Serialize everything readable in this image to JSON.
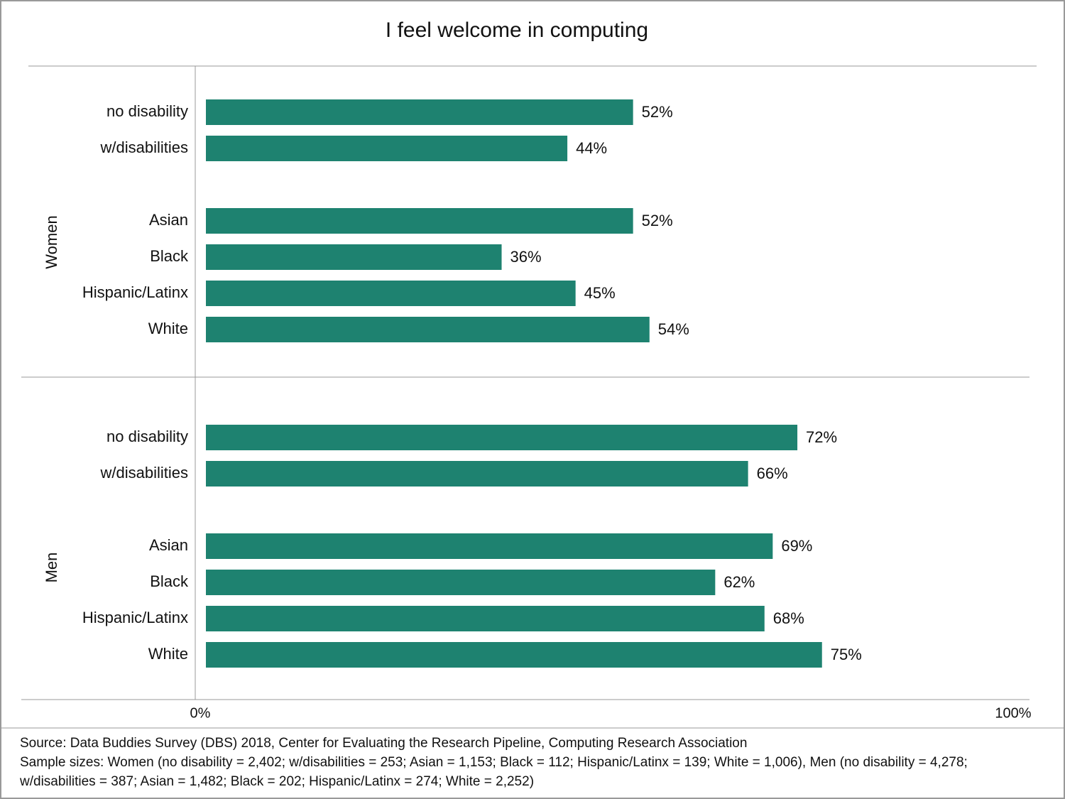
{
  "chart_data": {
    "type": "bar",
    "orientation": "horizontal",
    "title": "I feel welcome in computing",
    "color": "#1e8270",
    "groups": [
      {
        "name": "Women",
        "categories": [
          "no disability",
          "w/disabilities",
          null,
          "Asian",
          "Black",
          "Hispanic/Latinx",
          "White"
        ],
        "values": [
          52,
          44,
          null,
          52,
          36,
          45,
          54
        ],
        "value_labels": [
          "52%",
          "44%",
          null,
          "52%",
          "36%",
          "45%",
          "54%"
        ]
      },
      {
        "name": "Men",
        "categories": [
          "no disability",
          "w/disabilities",
          null,
          "Asian",
          "Black",
          "Hispanic/Latinx",
          "White"
        ],
        "values": [
          72,
          66,
          null,
          69,
          62,
          68,
          75
        ],
        "value_labels": [
          "72%",
          "66%",
          null,
          "69%",
          "62%",
          "68%",
          "75%"
        ]
      }
    ],
    "xlim": [
      0,
      100
    ],
    "xticks": [
      {
        "value": 0,
        "label": "0%"
      },
      {
        "value": 100,
        "label": "100%"
      }
    ],
    "grid": false,
    "source": "Source: Data Buddies Survey (DBS) 2018, Center for Evaluating the Research Pipeline, Computing Research Association",
    "note": "Sample sizes: Women (no disability = 2,402; w/disabilities = 253; Asian = 1,153; Black = 112; Hispanic/Latinx = 139; White = 1,006), Men (no disability = 4,278; w/disabilities = 387; Asian = 1,482; Black = 202; Hispanic/Latinx = 274; White = 2,252)"
  }
}
